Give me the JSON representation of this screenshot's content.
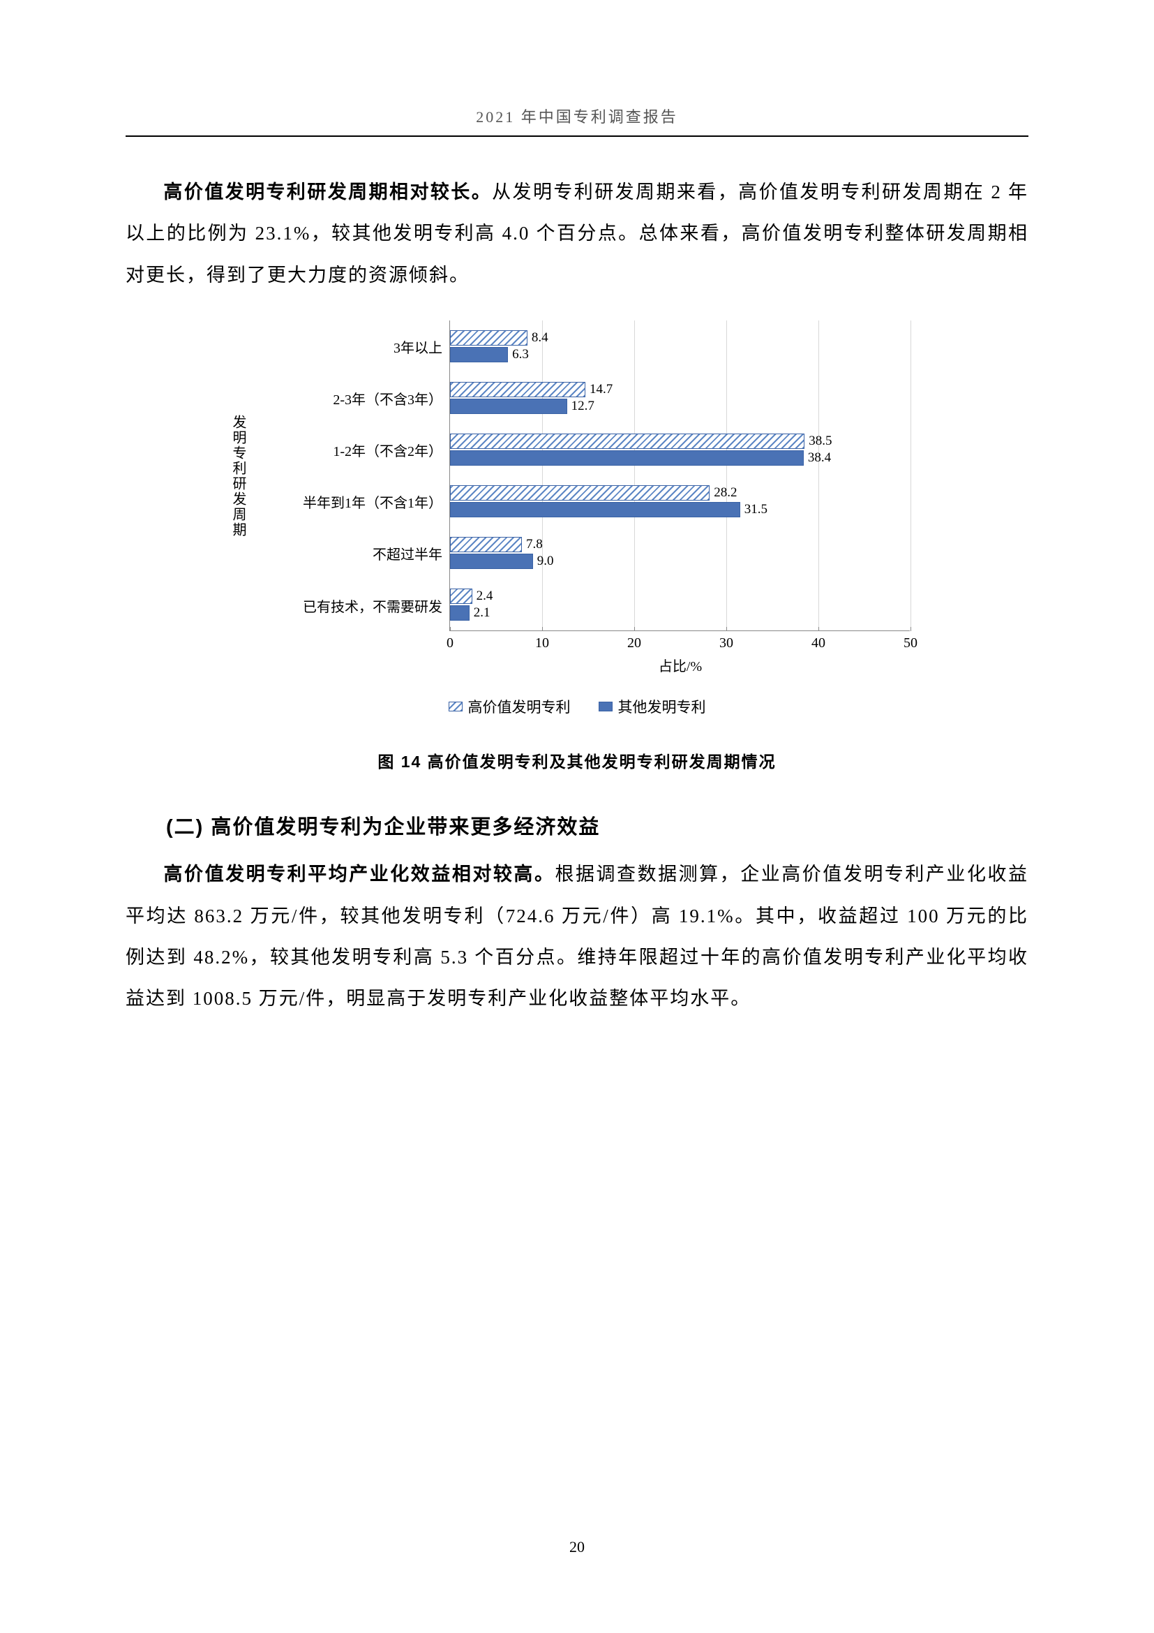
{
  "header": "2021 年中国专利调查报告",
  "para1_bold": "高价值发明专利研发周期相对较长。",
  "para1_rest": "从发明专利研发周期来看，高价值发明专利研发周期在 2 年以上的比例为 23.1%，较其他发明专利高 4.0 个百分点。总体来看，高价值发明专利整体研发周期相对更长，得到了更大力度的资源倾斜。",
  "chart": {
    "type": "bar",
    "y_axis_label": "发明专利研发周期",
    "x_axis_label": "占比/%",
    "xlim": [
      0,
      50
    ],
    "xtick_step": 10,
    "xticks": [
      "0",
      "10",
      "20",
      "30",
      "40",
      "50"
    ],
    "categories": [
      "3年以上",
      "2-3年（不含3年）",
      "1-2年（不含2年）",
      "半年到1年（不含1年）",
      "不超过半年",
      "已有技术，不需要研发"
    ],
    "series": [
      {
        "name": "高价值发明专利",
        "pattern": "hatched",
        "color": "#5c86c4",
        "values": [
          8.4,
          14.7,
          38.5,
          28.2,
          7.8,
          2.4
        ]
      },
      {
        "name": "其他发明专利",
        "pattern": "solid",
        "color": "#4a72b5",
        "values": [
          6.3,
          12.7,
          38.4,
          31.5,
          9.0,
          2.1
        ]
      }
    ],
    "bar_border_color": "#3a62a5",
    "grid_color": "#d8d8d8",
    "axis_color": "#888888",
    "background_color": "#ffffff",
    "label_fontsize": 20,
    "value_fontsize": 19
  },
  "figure_caption": "图 14   高价值发明专利及其他发明专利研发周期情况",
  "section2_title": "(二) 高价值发明专利为企业带来更多经济效益",
  "para2_bold": "高价值发明专利平均产业化效益相对较高。",
  "para2_rest": "根据调查数据测算，企业高价值发明专利产业化收益平均达 863.2 万元/件，较其他发明专利（724.6 万元/件）高 19.1%。其中，收益超过 100 万元的比例达到 48.2%，较其他发明专利高 5.3 个百分点。维持年限超过十年的高价值发明专利产业化平均收益达到 1008.5 万元/件，明显高于发明专利产业化收益整体平均水平。",
  "page_number": "20"
}
